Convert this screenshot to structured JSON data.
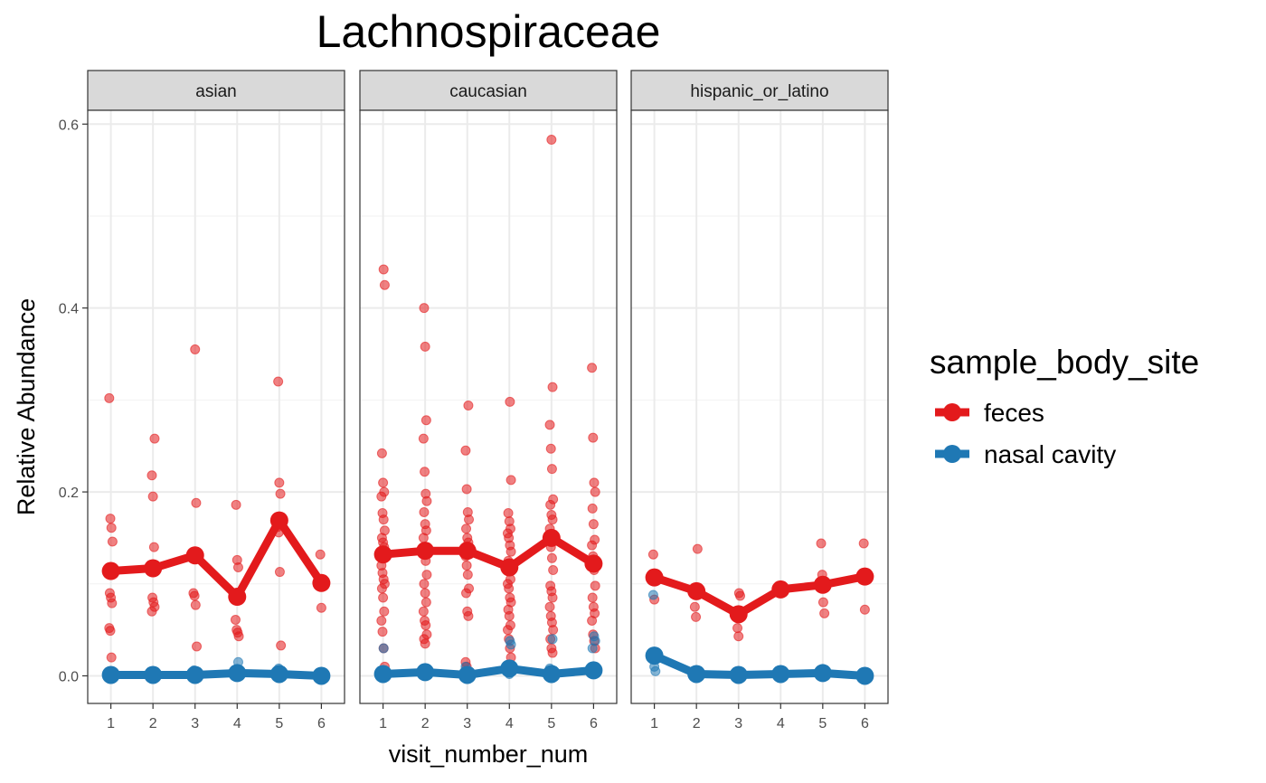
{
  "chart_data": {
    "type": "line",
    "title": "Lachnospiraceae",
    "xlabel": "visit_number_num",
    "ylabel": "Relative Abundance",
    "x_ticks": [
      1,
      2,
      3,
      4,
      5,
      6
    ],
    "y_ticks": [
      "0.0",
      "0.2",
      "0.4",
      "0.6"
    ],
    "y_tick_values": [
      0.0,
      0.2,
      0.4,
      0.6
    ],
    "xlim": [
      0.45,
      6.55
    ],
    "ylim": [
      -0.03,
      0.615
    ],
    "grid": true,
    "legend": {
      "title": "sample_body_site",
      "position": "right",
      "entries": [
        "feces",
        "nasal cavity"
      ]
    },
    "colors": {
      "feces": "#e31a1c",
      "nasal cavity": "#1f78b4"
    },
    "panels": [
      {
        "label": "asian",
        "lines": {
          "feces": [
            [
              1,
              0.114
            ],
            [
              2,
              0.117
            ],
            [
              3,
              0.131
            ],
            [
              4,
              0.086
            ],
            [
              5,
              0.169
            ],
            [
              6,
              0.101
            ]
          ],
          "nasal cavity": [
            [
              1,
              0.001
            ],
            [
              2,
              0.001
            ],
            [
              3,
              0.001
            ],
            [
              4,
              0.003
            ],
            [
              5,
              0.002
            ],
            [
              6,
              0.0
            ]
          ]
        },
        "points": {
          "feces": [
            [
              1,
              0.302
            ],
            [
              1,
              0.171
            ],
            [
              1,
              0.161
            ],
            [
              1,
              0.146
            ],
            [
              1,
              0.09
            ],
            [
              1,
              0.085
            ],
            [
              1,
              0.079
            ],
            [
              1,
              0.052
            ],
            [
              1,
              0.049
            ],
            [
              1,
              0.02
            ],
            [
              2,
              0.258
            ],
            [
              2,
              0.218
            ],
            [
              2,
              0.195
            ],
            [
              2,
              0.14
            ],
            [
              2,
              0.12
            ],
            [
              2,
              0.085
            ],
            [
              2,
              0.08
            ],
            [
              2,
              0.075
            ],
            [
              2,
              0.07
            ],
            [
              3,
              0.355
            ],
            [
              3,
              0.188
            ],
            [
              3,
              0.09
            ],
            [
              3,
              0.087
            ],
            [
              3,
              0.077
            ],
            [
              3,
              0.032
            ],
            [
              4,
              0.186
            ],
            [
              4,
              0.126
            ],
            [
              4,
              0.118
            ],
            [
              4,
              0.061
            ],
            [
              4,
              0.05
            ],
            [
              4,
              0.047
            ],
            [
              4,
              0.043
            ],
            [
              5,
              0.32
            ],
            [
              5,
              0.21
            ],
            [
              5,
              0.198
            ],
            [
              5,
              0.162
            ],
            [
              5,
              0.156
            ],
            [
              5,
              0.113
            ],
            [
              5,
              0.033
            ],
            [
              6,
              0.132
            ],
            [
              6,
              0.074
            ]
          ],
          "nasal cavity": [
            [
              1,
              0.002
            ],
            [
              1,
              0.0
            ],
            [
              2,
              0.002
            ],
            [
              2,
              0.0
            ],
            [
              3,
              0.006
            ],
            [
              3,
              0.001
            ],
            [
              4,
              0.015
            ],
            [
              4,
              0.002
            ],
            [
              5,
              0.008
            ],
            [
              5,
              0.001
            ],
            [
              6,
              0.001
            ],
            [
              6,
              0.0
            ]
          ]
        }
      },
      {
        "label": "caucasian",
        "lines": {
          "feces": [
            [
              1,
              0.132
            ],
            [
              2,
              0.136
            ],
            [
              3,
              0.136
            ],
            [
              4,
              0.118
            ],
            [
              5,
              0.15
            ],
            [
              6,
              0.122
            ]
          ],
          "nasal cavity": [
            [
              1,
              0.002
            ],
            [
              2,
              0.004
            ],
            [
              3,
              0.001
            ],
            [
              4,
              0.008
            ],
            [
              5,
              0.002
            ],
            [
              6,
              0.006
            ]
          ]
        },
        "points": {
          "feces": [
            [
              1,
              0.442
            ],
            [
              1,
              0.425
            ],
            [
              1,
              0.242
            ],
            [
              1,
              0.21
            ],
            [
              1,
              0.2
            ],
            [
              1,
              0.195
            ],
            [
              1,
              0.177
            ],
            [
              1,
              0.17
            ],
            [
              1,
              0.158
            ],
            [
              1,
              0.15
            ],
            [
              1,
              0.145
            ],
            [
              1,
              0.14
            ],
            [
              1,
              0.12
            ],
            [
              1,
              0.112
            ],
            [
              1,
              0.105
            ],
            [
              1,
              0.1
            ],
            [
              1,
              0.095
            ],
            [
              1,
              0.085
            ],
            [
              1,
              0.07
            ],
            [
              1,
              0.06
            ],
            [
              1,
              0.048
            ],
            [
              1,
              0.03
            ],
            [
              1,
              0.01
            ],
            [
              2,
              0.4
            ],
            [
              2,
              0.358
            ],
            [
              2,
              0.278
            ],
            [
              2,
              0.258
            ],
            [
              2,
              0.222
            ],
            [
              2,
              0.198
            ],
            [
              2,
              0.19
            ],
            [
              2,
              0.178
            ],
            [
              2,
              0.165
            ],
            [
              2,
              0.158
            ],
            [
              2,
              0.15
            ],
            [
              2,
              0.14
            ],
            [
              2,
              0.125
            ],
            [
              2,
              0.11
            ],
            [
              2,
              0.1
            ],
            [
              2,
              0.09
            ],
            [
              2,
              0.08
            ],
            [
              2,
              0.07
            ],
            [
              2,
              0.06
            ],
            [
              2,
              0.055
            ],
            [
              2,
              0.045
            ],
            [
              2,
              0.04
            ],
            [
              2,
              0.035
            ],
            [
              3,
              0.294
            ],
            [
              3,
              0.245
            ],
            [
              3,
              0.203
            ],
            [
              3,
              0.178
            ],
            [
              3,
              0.17
            ],
            [
              3,
              0.16
            ],
            [
              3,
              0.15
            ],
            [
              3,
              0.145
            ],
            [
              3,
              0.13
            ],
            [
              3,
              0.12
            ],
            [
              3,
              0.11
            ],
            [
              3,
              0.095
            ],
            [
              3,
              0.09
            ],
            [
              3,
              0.07
            ],
            [
              3,
              0.065
            ],
            [
              3,
              0.015
            ],
            [
              3,
              0.01
            ],
            [
              4,
              0.298
            ],
            [
              4,
              0.213
            ],
            [
              4,
              0.177
            ],
            [
              4,
              0.168
            ],
            [
              4,
              0.16
            ],
            [
              4,
              0.155
            ],
            [
              4,
              0.15
            ],
            [
              4,
              0.142
            ],
            [
              4,
              0.135
            ],
            [
              4,
              0.125
            ],
            [
              4,
              0.115
            ],
            [
              4,
              0.105
            ],
            [
              4,
              0.1
            ],
            [
              4,
              0.095
            ],
            [
              4,
              0.085
            ],
            [
              4,
              0.08
            ],
            [
              4,
              0.072
            ],
            [
              4,
              0.065
            ],
            [
              4,
              0.055
            ],
            [
              4,
              0.05
            ],
            [
              4,
              0.04
            ],
            [
              4,
              0.03
            ],
            [
              4,
              0.02
            ],
            [
              4,
              0.01
            ],
            [
              5,
              0.583
            ],
            [
              5,
              0.314
            ],
            [
              5,
              0.273
            ],
            [
              5,
              0.247
            ],
            [
              5,
              0.225
            ],
            [
              5,
              0.192
            ],
            [
              5,
              0.186
            ],
            [
              5,
              0.175
            ],
            [
              5,
              0.17
            ],
            [
              5,
              0.16
            ],
            [
              5,
              0.14
            ],
            [
              5,
              0.128
            ],
            [
              5,
              0.115
            ],
            [
              5,
              0.098
            ],
            [
              5,
              0.092
            ],
            [
              5,
              0.085
            ],
            [
              5,
              0.075
            ],
            [
              5,
              0.065
            ],
            [
              5,
              0.058
            ],
            [
              5,
              0.05
            ],
            [
              5,
              0.04
            ],
            [
              5,
              0.03
            ],
            [
              5,
              0.025
            ],
            [
              6,
              0.335
            ],
            [
              6,
              0.259
            ],
            [
              6,
              0.21
            ],
            [
              6,
              0.2
            ],
            [
              6,
              0.182
            ],
            [
              6,
              0.165
            ],
            [
              6,
              0.148
            ],
            [
              6,
              0.142
            ],
            [
              6,
              0.13
            ],
            [
              6,
              0.115
            ],
            [
              6,
              0.098
            ],
            [
              6,
              0.085
            ],
            [
              6,
              0.075
            ],
            [
              6,
              0.068
            ],
            [
              6,
              0.06
            ],
            [
              6,
              0.045
            ],
            [
              6,
              0.038
            ],
            [
              6,
              0.03
            ]
          ],
          "nasal cavity": [
            [
              1,
              0.03
            ],
            [
              1,
              0.002
            ],
            [
              1,
              0.0
            ],
            [
              2,
              0.008
            ],
            [
              2,
              0.002
            ],
            [
              3,
              0.01
            ],
            [
              3,
              0.001
            ],
            [
              4,
              0.038
            ],
            [
              4,
              0.034
            ],
            [
              4,
              0.01
            ],
            [
              4,
              0.002
            ],
            [
              5,
              0.04
            ],
            [
              5,
              0.008
            ],
            [
              5,
              0.001
            ],
            [
              6,
              0.043
            ],
            [
              6,
              0.038
            ],
            [
              6,
              0.03
            ],
            [
              6,
              0.003
            ]
          ]
        }
      },
      {
        "label": "hispanic_or_latino",
        "lines": {
          "feces": [
            [
              1,
              0.107
            ],
            [
              2,
              0.092
            ],
            [
              3,
              0.067
            ],
            [
              4,
              0.094
            ],
            [
              5,
              0.099
            ],
            [
              6,
              0.108
            ]
          ],
          "nasal cavity": [
            [
              1,
              0.022
            ],
            [
              2,
              0.002
            ],
            [
              3,
              0.001
            ],
            [
              4,
              0.002
            ],
            [
              5,
              0.003
            ],
            [
              6,
              0.0
            ]
          ]
        },
        "points": {
          "feces": [
            [
              1,
              0.132
            ],
            [
              1,
              0.083
            ],
            [
              2,
              0.138
            ],
            [
              2,
              0.075
            ],
            [
              2,
              0.064
            ],
            [
              3,
              0.09
            ],
            [
              3,
              0.087
            ],
            [
              3,
              0.052
            ],
            [
              3,
              0.043
            ],
            [
              4,
              0.094
            ],
            [
              5,
              0.144
            ],
            [
              5,
              0.11
            ],
            [
              5,
              0.08
            ],
            [
              5,
              0.068
            ],
            [
              6,
              0.144
            ],
            [
              6,
              0.072
            ]
          ],
          "nasal cavity": [
            [
              1,
              0.088
            ],
            [
              1,
              0.01
            ],
            [
              1,
              0.005
            ],
            [
              2,
              0.001
            ],
            [
              3,
              0.001
            ],
            [
              4,
              0.002
            ],
            [
              5,
              0.003
            ],
            [
              6,
              0.0
            ]
          ]
        }
      }
    ]
  }
}
